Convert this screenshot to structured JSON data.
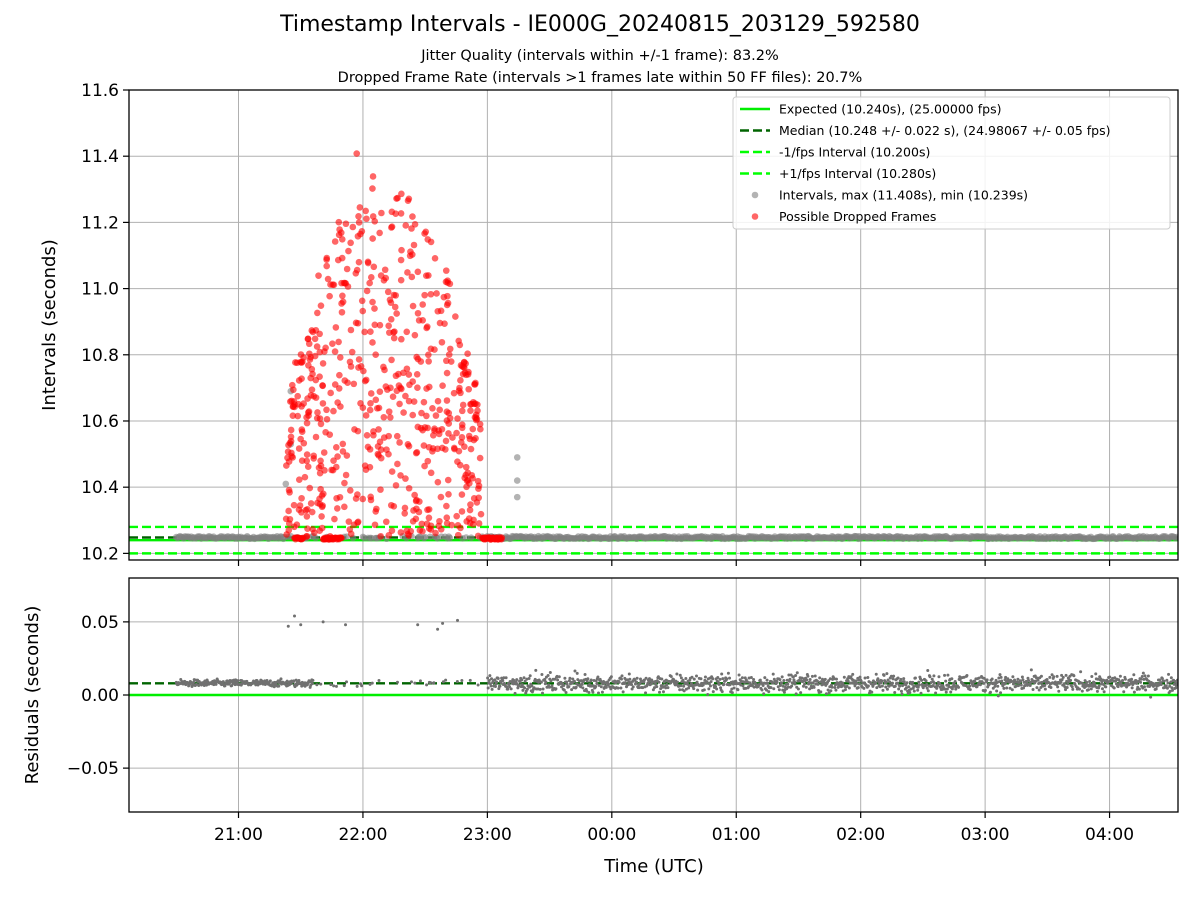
{
  "figure": {
    "title": "Timestamp Intervals - IE000G_20240815_203129_592580",
    "subtitle_jitter": "Jitter Quality (intervals within +/-1 frame): 83.2%",
    "subtitle_dropped": "Dropped Frame Rate (intervals >1 frames late within 50 FF files): 20.7%",
    "xlabel": "Time (UTC)",
    "colors": {
      "expected": "#00ee00",
      "median": "#006400",
      "fps_interval": "#00ff00",
      "intervals": "#808080",
      "dropped": "#ff0000",
      "grid": "#b0b0b0"
    }
  },
  "chart_data": [
    {
      "type": "scatter",
      "name": "intervals-panel",
      "ylabel": "Intervals (seconds)",
      "ylim": [
        10.18,
        11.6
      ],
      "yticks": [
        10.2,
        10.4,
        10.6,
        10.8,
        11.0,
        11.2,
        11.4,
        11.6
      ],
      "ytick_labels": [
        "10.2",
        "10.4",
        "10.6",
        "10.8",
        "11.0",
        "11.2",
        "11.4",
        "11.6"
      ],
      "xlim_hours": [
        20.12,
        28.55
      ],
      "xticks_hours": [
        21,
        22,
        23,
        24,
        25,
        26,
        27,
        28
      ],
      "xtick_labels": [
        "21:00",
        "22:00",
        "23:00",
        "00:00",
        "01:00",
        "02:00",
        "03:00",
        "04:00"
      ],
      "grid": true,
      "legend_position": "top-right",
      "reference_lines": [
        {
          "label": "Expected (10.240s), (25.00000 fps)",
          "y": 10.24,
          "style": "solid",
          "color": "#00ee00"
        },
        {
          "label": "Median (10.248 +/- 0.022 s), (24.98067 +/- 0.05 fps)",
          "y": 10.248,
          "style": "dashed",
          "color": "#006400"
        },
        {
          "label": "-1/fps Interval (10.200s)",
          "y": 10.2,
          "style": "dashed",
          "color": "#00ff00"
        },
        {
          "label": "+1/fps Interval (10.280s)",
          "y": 10.28,
          "style": "dashed",
          "color": "#00ff00"
        }
      ],
      "series": [
        {
          "name": "Intervals, max (11.408s), min (10.239s)",
          "kind": "normal",
          "range_hours": [
            20.5,
            28.55
          ],
          "y_base": 10.248,
          "outliers": [
            [
              21.38,
              10.41
            ],
            [
              21.42,
              10.53
            ],
            [
              21.42,
              10.69
            ],
            [
              23.24,
              10.49
            ],
            [
              23.24,
              10.42
            ],
            [
              23.24,
              10.37
            ]
          ]
        },
        {
          "name": "Possible Dropped Frames",
          "kind": "dropped",
          "range_hours": [
            21.38,
            22.95
          ],
          "y_range": [
            10.25,
            11.408
          ],
          "count": 600,
          "clusters": [
            [
              21.45,
              21.52,
              10.245
            ],
            [
              21.68,
              21.83,
              10.245
            ],
            [
              22.96,
              23.12,
              10.245
            ]
          ]
        }
      ]
    },
    {
      "type": "scatter",
      "name": "residuals-panel",
      "ylabel": "Residuals (seconds)",
      "ylim": [
        -0.08,
        0.08
      ],
      "yticks": [
        0.05,
        0.0,
        -0.05
      ],
      "ytick_labels": [
        "0.05",
        "0.00",
        "−0.05"
      ],
      "xlim_hours": [
        20.12,
        28.55
      ],
      "xticks_hours": [
        21,
        22,
        23,
        24,
        25,
        26,
        27,
        28
      ],
      "xtick_labels": [
        "21:00",
        "22:00",
        "23:00",
        "00:00",
        "01:00",
        "02:00",
        "03:00",
        "04:00"
      ],
      "grid": true,
      "reference_lines": [
        {
          "y": 0.0,
          "style": "solid",
          "color": "#00ee00"
        },
        {
          "y": 0.008,
          "style": "dashed",
          "color": "#006400"
        }
      ],
      "series": [
        {
          "name": "residuals",
          "kind": "residual",
          "range_hours": [
            20.5,
            28.55
          ],
          "y_base": 0.008,
          "spread": 0.006,
          "outliers": [
            [
              21.4,
              0.047
            ],
            [
              21.45,
              0.054
            ],
            [
              21.5,
              0.048
            ],
            [
              21.68,
              0.05
            ],
            [
              21.86,
              0.048
            ],
            [
              22.44,
              0.048
            ],
            [
              22.6,
              0.045
            ],
            [
              22.64,
              0.049
            ],
            [
              22.76,
              0.051
            ]
          ]
        }
      ]
    }
  ]
}
